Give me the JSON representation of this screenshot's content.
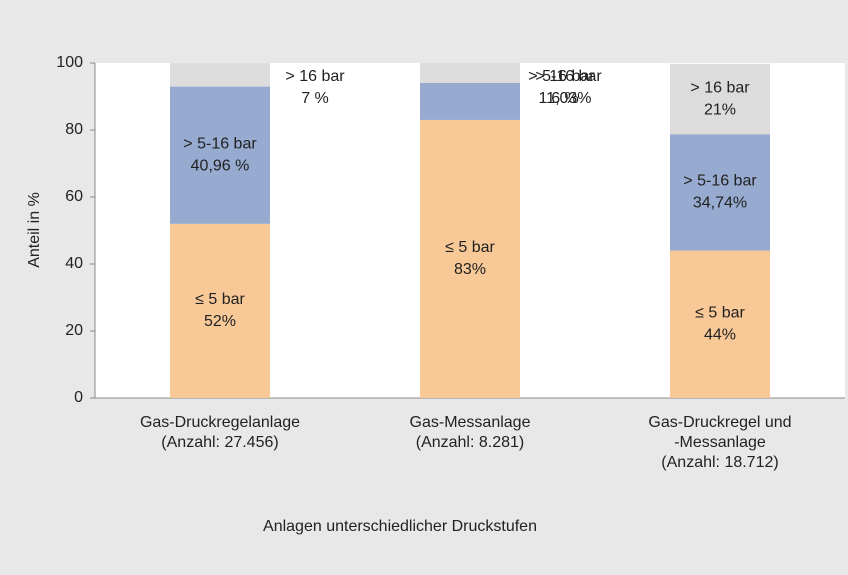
{
  "chart_data": {
    "type": "stacked-bar",
    "categories": [
      [
        "Gas-Druckregelanlage",
        "(Anzahl: 27.456)"
      ],
      [
        "Gas-Messanlage",
        "(Anzahl: 8.281)"
      ],
      [
        "Gas-Druckregel und",
        "-Messanlage",
        "(Anzahl: 18.712)"
      ]
    ],
    "series": [
      {
        "name": "≤ 5 bar",
        "color": "#f8c897",
        "values": [
          52,
          83,
          44
        ],
        "value_labels": [
          "52%",
          "83%",
          "44%"
        ]
      },
      {
        "name": "> 5-16 bar",
        "color": "#97aad0",
        "values": [
          40.96,
          11.03,
          34.74
        ],
        "value_labels": [
          "40,96 %",
          "11,03%",
          "34,74%"
        ]
      },
      {
        "name": "> 16 bar",
        "color": "#dcdcdc",
        "values": [
          7,
          6,
          21
        ],
        "value_labels": [
          "7 %",
          "6 %",
          "21%"
        ]
      }
    ],
    "ylim": [
      0,
      100
    ],
    "yticks": [
      0,
      20,
      40,
      60,
      80,
      100
    ],
    "y_label": "Anteil in %",
    "x_label": "Anlagen unterschiedlicher Druckstufen"
  }
}
